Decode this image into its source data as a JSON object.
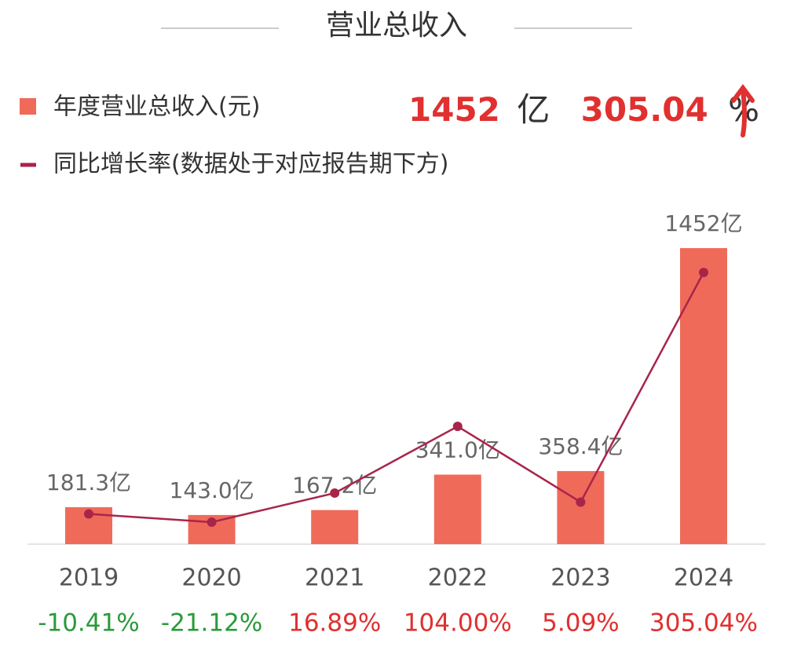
{
  "header": {
    "value": 1452,
    "unit": "亿",
    "rate": 305.04,
    "rate_unit": "%"
  },
  "chart_data": {
    "type": "bar",
    "title": "营业总收入",
    "categories": [
      "2019",
      "2020",
      "2021",
      "2022",
      "2023",
      "2024"
    ],
    "positive_color": "#e0302f",
    "negative_color": "#2a9a3a",
    "series": [
      {
        "name": "年度营业总收入(元)",
        "type": "bar",
        "color": "#f06a5a",
        "values": [
          181.3,
          143.0,
          167.2,
          341.0,
          358.4,
          1452
        ],
        "value_labels": [
          "181.3亿",
          "143.0亿",
          "167.2亿",
          "341.0亿",
          "358.4亿",
          "1452亿"
        ]
      },
      {
        "name": "同比增长率(数据处于对应报告期下方)",
        "type": "line",
        "axis": "y2",
        "color": "#a8254a",
        "values": [
          -10.41,
          -21.12,
          16.89,
          104.0,
          5.09,
          305.04
        ],
        "value_labels": [
          "-10.41%",
          "-21.12%",
          "16.89%",
          "104.00%",
          "5.09%",
          "305.04%"
        ]
      }
    ]
  }
}
